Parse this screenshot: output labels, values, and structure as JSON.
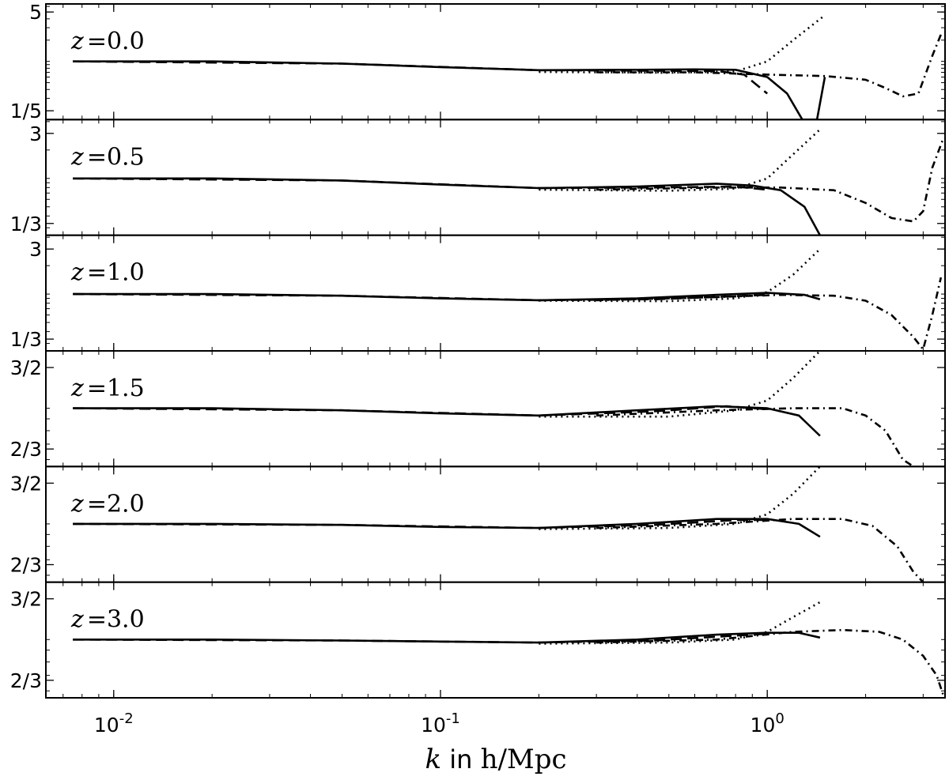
{
  "chart_data": {
    "type": "line",
    "xlabel": {
      "var": "k",
      "mid": " in ",
      "unit": "h/Mpc"
    },
    "xscale": "log",
    "xlim": [
      0.0062,
      3.5
    ],
    "xticks": [
      {
        "value": 0.01,
        "base": "10",
        "exp": "-2"
      },
      {
        "value": 0.1,
        "base": "10",
        "exp": "-1"
      },
      {
        "value": 1,
        "base": "10",
        "exp": "0"
      }
    ],
    "line_color": "#000000",
    "line_styles": [
      "solid",
      "dashed",
      "dash-dot",
      "dotted"
    ],
    "panels": [
      {
        "label": "z = 0.0",
        "z_text": "0.0",
        "yscale": "log",
        "ylim": [
          0.15,
          6.5
        ],
        "yticks": [
          {
            "value": 5,
            "label": "5"
          },
          {
            "value": 0.2,
            "label": "1/5"
          }
        ],
        "series": [
          {
            "style": "solid",
            "points": [
              [
                0.0075,
                1.0
              ],
              [
                0.02,
                1.0
              ],
              [
                0.05,
                0.93
              ],
              [
                0.1,
                0.83
              ],
              [
                0.2,
                0.75
              ],
              [
                0.4,
                0.76
              ],
              [
                0.6,
                0.77
              ],
              [
                0.8,
                0.76
              ],
              [
                1.0,
                0.6
              ],
              [
                1.15,
                0.35
              ],
              [
                1.28,
                0.15
              ],
              [
                1.42,
                0.15
              ],
              [
                1.5,
                0.6
              ]
            ]
          },
          {
            "style": "dashed",
            "points": [
              [
                0.0075,
                1.0
              ],
              [
                0.05,
                0.93
              ],
              [
                0.2,
                0.75
              ],
              [
                0.4,
                0.74
              ],
              [
                0.7,
                0.73
              ],
              [
                0.85,
                0.65
              ],
              [
                1.0,
                0.35
              ]
            ]
          },
          {
            "style": "dashdot",
            "points": [
              [
                0.3,
                0.7
              ],
              [
                0.6,
                0.7
              ],
              [
                1.0,
                0.65
              ],
              [
                1.5,
                0.62
              ],
              [
                2.0,
                0.55
              ],
              [
                2.3,
                0.42
              ],
              [
                2.6,
                0.32
              ],
              [
                2.9,
                0.35
              ],
              [
                3.2,
                1.2
              ],
              [
                3.4,
                2.4
              ]
            ]
          },
          {
            "style": "dotted",
            "points": [
              [
                0.2,
                0.71
              ],
              [
                0.5,
                0.69
              ],
              [
                0.8,
                0.72
              ],
              [
                1.0,
                1.0
              ],
              [
                1.2,
                2.0
              ],
              [
                1.5,
                4.5
              ]
            ]
          }
        ]
      },
      {
        "label": "z = 0.5",
        "z_text": "0.5",
        "yscale": "log",
        "ylim": [
          0.25,
          4.2
        ],
        "yticks": [
          {
            "value": 3,
            "label": "3"
          },
          {
            "value": 0.3333,
            "label": "1/3"
          }
        ],
        "series": [
          {
            "style": "solid",
            "points": [
              [
                0.0075,
                1.0
              ],
              [
                0.02,
                1.0
              ],
              [
                0.05,
                0.95
              ],
              [
                0.1,
                0.86
              ],
              [
                0.2,
                0.79
              ],
              [
                0.4,
                0.82
              ],
              [
                0.7,
                0.88
              ],
              [
                0.9,
                0.84
              ],
              [
                1.1,
                0.75
              ],
              [
                1.3,
                0.5
              ],
              [
                1.45,
                0.25
              ]
            ]
          },
          {
            "style": "dashed",
            "points": [
              [
                0.0075,
                1.0
              ],
              [
                0.05,
                0.95
              ],
              [
                0.2,
                0.79
              ],
              [
                0.45,
                0.8
              ],
              [
                0.8,
                0.82
              ],
              [
                1.0,
                0.76
              ]
            ]
          },
          {
            "style": "dashdot",
            "points": [
              [
                0.3,
                0.76
              ],
              [
                0.7,
                0.8
              ],
              [
                1.1,
                0.8
              ],
              [
                1.6,
                0.75
              ],
              [
                2.0,
                0.55
              ],
              [
                2.4,
                0.38
              ],
              [
                2.8,
                0.35
              ],
              [
                3.0,
                0.45
              ],
              [
                3.2,
                1.3
              ],
              [
                3.45,
                2.6
              ]
            ]
          },
          {
            "style": "dotted",
            "points": [
              [
                0.2,
                0.76
              ],
              [
                0.5,
                0.74
              ],
              [
                0.8,
                0.78
              ],
              [
                1.0,
                1.0
              ],
              [
                1.2,
                1.8
              ],
              [
                1.45,
                3.3
              ]
            ]
          }
        ]
      },
      {
        "label": "z = 1.0",
        "z_text": "1.0",
        "yscale": "log",
        "ylim": [
          0.25,
          4.2
        ],
        "yticks": [
          {
            "value": 3,
            "label": "3"
          },
          {
            "value": 0.3333,
            "label": "1/3"
          }
        ],
        "series": [
          {
            "style": "solid",
            "points": [
              [
                0.0075,
                1.0
              ],
              [
                0.02,
                1.0
              ],
              [
                0.05,
                0.96
              ],
              [
                0.1,
                0.9
              ],
              [
                0.2,
                0.86
              ],
              [
                0.4,
                0.9
              ],
              [
                0.7,
                0.98
              ],
              [
                1.0,
                1.03
              ],
              [
                1.3,
                0.98
              ],
              [
                1.45,
                0.88
              ]
            ]
          },
          {
            "style": "dashed",
            "points": [
              [
                0.0075,
                1.0
              ],
              [
                0.05,
                0.96
              ],
              [
                0.2,
                0.86
              ],
              [
                0.45,
                0.88
              ],
              [
                0.8,
                0.95
              ],
              [
                1.0,
                0.98
              ]
            ]
          },
          {
            "style": "dashdot",
            "points": [
              [
                0.3,
                0.86
              ],
              [
                0.7,
                0.93
              ],
              [
                1.1,
                0.98
              ],
              [
                1.6,
                0.96
              ],
              [
                2.0,
                0.85
              ],
              [
                2.4,
                0.6
              ],
              [
                2.8,
                0.35
              ],
              [
                3.0,
                0.26
              ],
              [
                3.2,
                0.6
              ],
              [
                3.4,
                1.5
              ]
            ]
          },
          {
            "style": "dotted",
            "points": [
              [
                0.2,
                0.85
              ],
              [
                0.5,
                0.84
              ],
              [
                0.8,
                0.9
              ],
              [
                1.0,
                1.05
              ],
              [
                1.2,
                1.6
              ],
              [
                1.45,
                3.0
              ]
            ]
          }
        ]
      },
      {
        "label": "z = 1.5",
        "z_text": "1.5",
        "yscale": "log",
        "ylim": [
          0.56,
          1.77
        ],
        "yticks": [
          {
            "value": 1.5,
            "label": "3/2"
          },
          {
            "value": 0.6667,
            "label": "2/3"
          }
        ],
        "series": [
          {
            "style": "solid",
            "points": [
              [
                0.0075,
                1.0
              ],
              [
                0.02,
                1.0
              ],
              [
                0.05,
                0.98
              ],
              [
                0.1,
                0.95
              ],
              [
                0.2,
                0.93
              ],
              [
                0.4,
                0.98
              ],
              [
                0.7,
                1.02
              ],
              [
                1.0,
                1.0
              ],
              [
                1.25,
                0.93
              ],
              [
                1.45,
                0.76
              ]
            ]
          },
          {
            "style": "dashed",
            "points": [
              [
                0.0075,
                1.0
              ],
              [
                0.05,
                0.98
              ],
              [
                0.2,
                0.93
              ],
              [
                0.45,
                0.97
              ],
              [
                0.75,
                1.02
              ],
              [
                1.0,
                0.99
              ]
            ]
          },
          {
            "style": "dashdot",
            "points": [
              [
                0.3,
                0.93
              ],
              [
                0.7,
                0.98
              ],
              [
                1.2,
                1.0
              ],
              [
                1.7,
                1.0
              ],
              [
                2.0,
                0.93
              ],
              [
                2.3,
                0.8
              ],
              [
                2.6,
                0.6
              ],
              [
                2.8,
                0.56
              ]
            ]
          },
          {
            "style": "dotted",
            "points": [
              [
                0.2,
                0.92
              ],
              [
                0.5,
                0.92
              ],
              [
                0.8,
                0.98
              ],
              [
                1.0,
                1.08
              ],
              [
                1.2,
                1.35
              ],
              [
                1.45,
                1.77
              ]
            ]
          }
        ]
      },
      {
        "label": "z = 2.0",
        "z_text": "2.0",
        "yscale": "log",
        "ylim": [
          0.56,
          1.77
        ],
        "yticks": [
          {
            "value": 1.5,
            "label": "3/2"
          },
          {
            "value": 0.6667,
            "label": "2/3"
          }
        ],
        "series": [
          {
            "style": "solid",
            "points": [
              [
                0.0075,
                1.0
              ],
              [
                0.02,
                1.0
              ],
              [
                0.05,
                0.99
              ],
              [
                0.1,
                0.97
              ],
              [
                0.2,
                0.96
              ],
              [
                0.4,
                1.0
              ],
              [
                0.7,
                1.05
              ],
              [
                1.0,
                1.05
              ],
              [
                1.25,
                1.0
              ],
              [
                1.45,
                0.88
              ]
            ]
          },
          {
            "style": "dashed",
            "points": [
              [
                0.0075,
                1.0
              ],
              [
                0.05,
                0.99
              ],
              [
                0.2,
                0.96
              ],
              [
                0.45,
                0.99
              ],
              [
                0.8,
                1.04
              ],
              [
                1.0,
                1.04
              ]
            ]
          },
          {
            "style": "dashdot",
            "points": [
              [
                0.3,
                0.96
              ],
              [
                0.7,
                1.0
              ],
              [
                1.2,
                1.05
              ],
              [
                1.7,
                1.05
              ],
              [
                2.1,
                0.98
              ],
              [
                2.5,
                0.8
              ],
              [
                2.8,
                0.62
              ],
              [
                3.0,
                0.56
              ]
            ]
          },
          {
            "style": "dotted",
            "points": [
              [
                0.2,
                0.95
              ],
              [
                0.5,
                0.96
              ],
              [
                0.8,
                1.0
              ],
              [
                1.0,
                1.1
              ],
              [
                1.2,
                1.35
              ],
              [
                1.45,
                1.77
              ]
            ]
          }
        ]
      },
      {
        "label": "z = 3.0",
        "z_text": "3.0",
        "yscale": "log",
        "ylim": [
          0.56,
          1.77
        ],
        "yticks": [
          {
            "value": 1.5,
            "label": "3/2"
          },
          {
            "value": 0.6667,
            "label": "2/3"
          }
        ],
        "series": [
          {
            "style": "solid",
            "points": [
              [
                0.0075,
                1.0
              ],
              [
                0.02,
                1.0
              ],
              [
                0.05,
                0.99
              ],
              [
                0.1,
                0.98
              ],
              [
                0.2,
                0.97
              ],
              [
                0.4,
                1.0
              ],
              [
                0.7,
                1.05
              ],
              [
                1.0,
                1.07
              ],
              [
                1.25,
                1.07
              ],
              [
                1.45,
                1.02
              ]
            ]
          },
          {
            "style": "dashed",
            "points": [
              [
                0.0075,
                1.0
              ],
              [
                0.05,
                0.99
              ],
              [
                0.2,
                0.97
              ],
              [
                0.45,
                0.99
              ],
              [
                0.8,
                1.04
              ],
              [
                1.0,
                1.06
              ]
            ]
          },
          {
            "style": "dashdot",
            "points": [
              [
                0.3,
                0.97
              ],
              [
                0.7,
                1.0
              ],
              [
                1.2,
                1.08
              ],
              [
                1.7,
                1.1
              ],
              [
                2.2,
                1.08
              ],
              [
                2.6,
                1.0
              ],
              [
                3.0,
                0.85
              ],
              [
                3.3,
                0.7
              ],
              [
                3.45,
                0.58
              ]
            ]
          },
          {
            "style": "dotted",
            "points": [
              [
                0.2,
                0.96
              ],
              [
                0.5,
                0.97
              ],
              [
                0.8,
                1.0
              ],
              [
                1.0,
                1.08
              ],
              [
                1.2,
                1.25
              ],
              [
                1.45,
                1.45
              ]
            ]
          }
        ]
      }
    ]
  }
}
